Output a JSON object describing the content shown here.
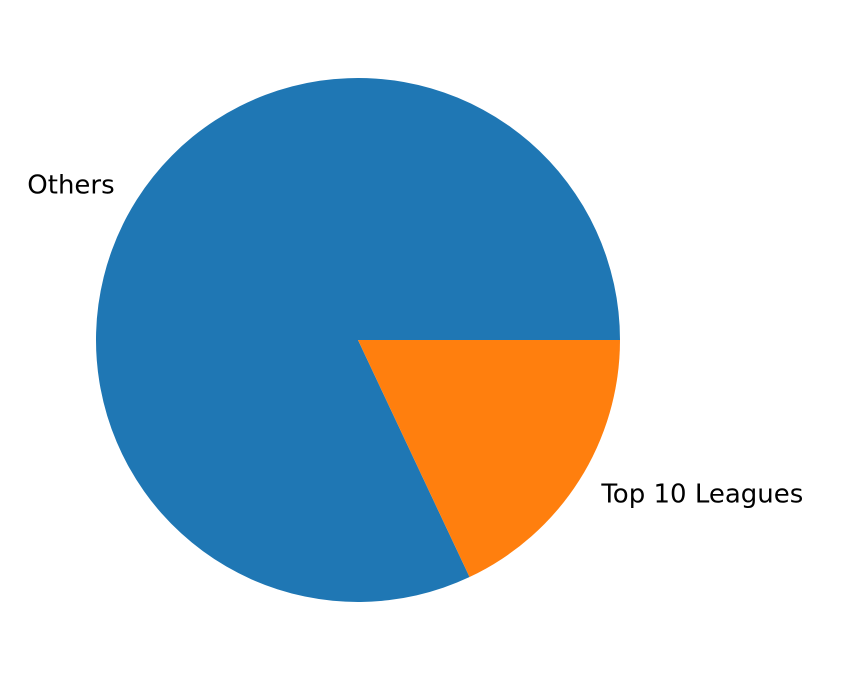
{
  "chart_data": {
    "type": "pie",
    "title": "",
    "start_angle_deg": 0,
    "direction": "counterclockwise",
    "slices": [
      {
        "label": "Others",
        "value": 82,
        "color": "#1f77b4"
      },
      {
        "label": "Top 10 Leagues",
        "value": 18,
        "color": "#ff7f0e"
      }
    ],
    "legend": "none"
  }
}
